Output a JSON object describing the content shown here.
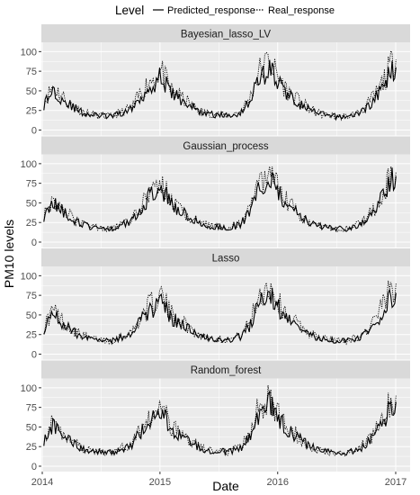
{
  "chart_data": {
    "type": "line",
    "xlabel": "Date",
    "ylabel": "PM10 levels",
    "x_range": [
      "2014-01-01",
      "2017-01-15"
    ],
    "ylim": [
      0,
      105
    ],
    "y_ticks": [
      0,
      25,
      50,
      75,
      100
    ],
    "x_ticks": [
      {
        "date": "2014-01-01",
        "label": "2014"
      },
      {
        "date": "2015-01-01",
        "label": "2015"
      },
      {
        "date": "2016-01-01",
        "label": "2016"
      },
      {
        "date": "2017-01-01",
        "label": "2017"
      }
    ],
    "grid": true,
    "legend": {
      "title": "Level",
      "position": "top",
      "entries": [
        {
          "name": "Predicted_response",
          "line": "solid"
        },
        {
          "name": "Real_response",
          "line": "dotted"
        }
      ]
    },
    "colors": {
      "line": "#000000",
      "panel": "#ebebeb",
      "strip": "#d9d9d9",
      "grid": "#ffffff"
    },
    "approx_weekly_real_response": {
      "x": [
        "2014-01-06",
        "2014-02-03",
        "2014-03-03",
        "2014-04-07",
        "2014-05-05",
        "2014-06-02",
        "2014-07-07",
        "2014-08-04",
        "2014-09-01",
        "2014-10-06",
        "2014-11-03",
        "2014-12-01",
        "2015-01-05",
        "2015-02-02",
        "2015-03-02",
        "2015-04-06",
        "2015-05-04",
        "2015-06-01",
        "2015-07-06",
        "2015-08-03",
        "2015-09-07",
        "2015-10-05",
        "2015-11-02",
        "2015-12-07",
        "2016-01-04",
        "2016-02-01",
        "2016-03-07",
        "2016-04-04",
        "2016-05-02",
        "2016-06-06",
        "2016-07-04",
        "2016-08-01",
        "2016-09-05",
        "2016-10-03",
        "2016-11-07",
        "2016-12-05",
        "2017-01-02"
      ],
      "values": [
        32,
        52,
        40,
        28,
        22,
        18,
        17,
        16,
        21,
        26,
        44,
        58,
        70,
        48,
        40,
        30,
        22,
        20,
        18,
        17,
        22,
        36,
        68,
        82,
        60,
        46,
        34,
        26,
        20,
        17,
        16,
        16,
        20,
        28,
        46,
        66,
        90
      ]
    },
    "panels": [
      {
        "title": "Bayesian_lasso_LV",
        "predicted_response": {
          "x": [
            "2014-01-06",
            "2014-02-03",
            "2014-03-03",
            "2014-04-07",
            "2014-05-05",
            "2014-06-02",
            "2014-07-07",
            "2014-08-04",
            "2014-09-01",
            "2014-10-06",
            "2014-11-03",
            "2014-12-01",
            "2015-01-05",
            "2015-02-02",
            "2015-03-02",
            "2015-04-06",
            "2015-05-04",
            "2015-06-01",
            "2015-07-06",
            "2015-08-03",
            "2015-09-07",
            "2015-10-05",
            "2015-11-02",
            "2015-12-07",
            "2016-01-04",
            "2016-02-01",
            "2016-03-07",
            "2016-04-04",
            "2016-05-02",
            "2016-06-06",
            "2016-07-04",
            "2016-08-01",
            "2016-09-05",
            "2016-10-03",
            "2016-11-07",
            "2016-12-05",
            "2017-01-02"
          ],
          "values": [
            30,
            48,
            38,
            27,
            21,
            18,
            17,
            16,
            20,
            25,
            40,
            52,
            64,
            45,
            38,
            29,
            22,
            19,
            18,
            17,
            21,
            34,
            60,
            74,
            56,
            43,
            32,
            25,
            20,
            17,
            16,
            16,
            19,
            27,
            42,
            60,
            80
          ]
        }
      },
      {
        "title": "Gaussian_process",
        "predicted_response": {
          "x": [
            "2014-01-06",
            "2014-02-03",
            "2014-03-03",
            "2014-04-07",
            "2014-05-05",
            "2014-06-02",
            "2014-07-07",
            "2014-08-04",
            "2014-09-01",
            "2014-10-06",
            "2014-11-03",
            "2014-12-01",
            "2015-01-05",
            "2015-02-02",
            "2015-03-02",
            "2015-04-06",
            "2015-05-04",
            "2015-06-01",
            "2015-07-06",
            "2015-08-03",
            "2015-09-07",
            "2015-10-05",
            "2015-11-02",
            "2015-12-07",
            "2016-01-04",
            "2016-02-01",
            "2016-03-07",
            "2016-04-04",
            "2016-05-02",
            "2016-06-06",
            "2016-07-04",
            "2016-08-01",
            "2016-09-05",
            "2016-10-03",
            "2016-11-07",
            "2016-12-05",
            "2017-01-02"
          ],
          "values": [
            31,
            50,
            39,
            27,
            21,
            18,
            17,
            16,
            20,
            26,
            42,
            55,
            66,
            46,
            39,
            29,
            22,
            19,
            18,
            17,
            21,
            35,
            62,
            76,
            57,
            44,
            33,
            25,
            20,
            17,
            16,
            16,
            19,
            27,
            44,
            62,
            84
          ]
        }
      },
      {
        "title": "Lasso",
        "predicted_response": {
          "x": [
            "2014-01-06",
            "2014-02-03",
            "2014-03-03",
            "2014-04-07",
            "2014-05-05",
            "2014-06-02",
            "2014-07-07",
            "2014-08-04",
            "2014-09-01",
            "2014-10-06",
            "2014-11-03",
            "2014-12-01",
            "2015-01-05",
            "2015-02-02",
            "2015-03-02",
            "2015-04-06",
            "2015-05-04",
            "2015-06-01",
            "2015-07-06",
            "2015-08-03",
            "2015-09-07",
            "2015-10-05",
            "2015-11-02",
            "2015-12-07",
            "2016-01-04",
            "2016-02-01",
            "2016-03-07",
            "2016-04-04",
            "2016-05-02",
            "2016-06-06",
            "2016-07-04",
            "2016-08-01",
            "2016-09-05",
            "2016-10-03",
            "2016-11-07",
            "2016-12-05",
            "2017-01-02"
          ],
          "values": [
            30,
            47,
            37,
            27,
            21,
            18,
            17,
            16,
            20,
            25,
            40,
            51,
            62,
            44,
            37,
            28,
            22,
            19,
            18,
            17,
            21,
            33,
            58,
            72,
            55,
            42,
            32,
            25,
            20,
            17,
            16,
            16,
            19,
            26,
            41,
            58,
            78
          ]
        }
      },
      {
        "title": "Random_forest",
        "predicted_response": {
          "x": [
            "2014-01-06",
            "2014-02-03",
            "2014-03-03",
            "2014-04-07",
            "2014-05-05",
            "2014-06-02",
            "2014-07-07",
            "2014-08-04",
            "2014-09-01",
            "2014-10-06",
            "2014-11-03",
            "2014-12-01",
            "2015-01-05",
            "2015-02-02",
            "2015-03-02",
            "2015-04-06",
            "2015-05-04",
            "2015-06-01",
            "2015-07-06",
            "2015-08-03",
            "2015-09-07",
            "2015-10-05",
            "2015-11-02",
            "2015-12-07",
            "2016-01-04",
            "2016-02-01",
            "2016-03-07",
            "2016-04-04",
            "2016-05-02",
            "2016-06-06",
            "2016-07-04",
            "2016-08-01",
            "2016-09-05",
            "2016-10-03",
            "2016-11-07",
            "2016-12-05",
            "2017-01-02"
          ],
          "values": [
            31,
            49,
            38,
            27,
            21,
            18,
            17,
            16,
            20,
            26,
            41,
            54,
            65,
            46,
            38,
            29,
            22,
            19,
            18,
            17,
            21,
            34,
            61,
            75,
            57,
            43,
            33,
            25,
            20,
            17,
            16,
            16,
            19,
            27,
            43,
            61,
            82
          ]
        }
      }
    ]
  }
}
